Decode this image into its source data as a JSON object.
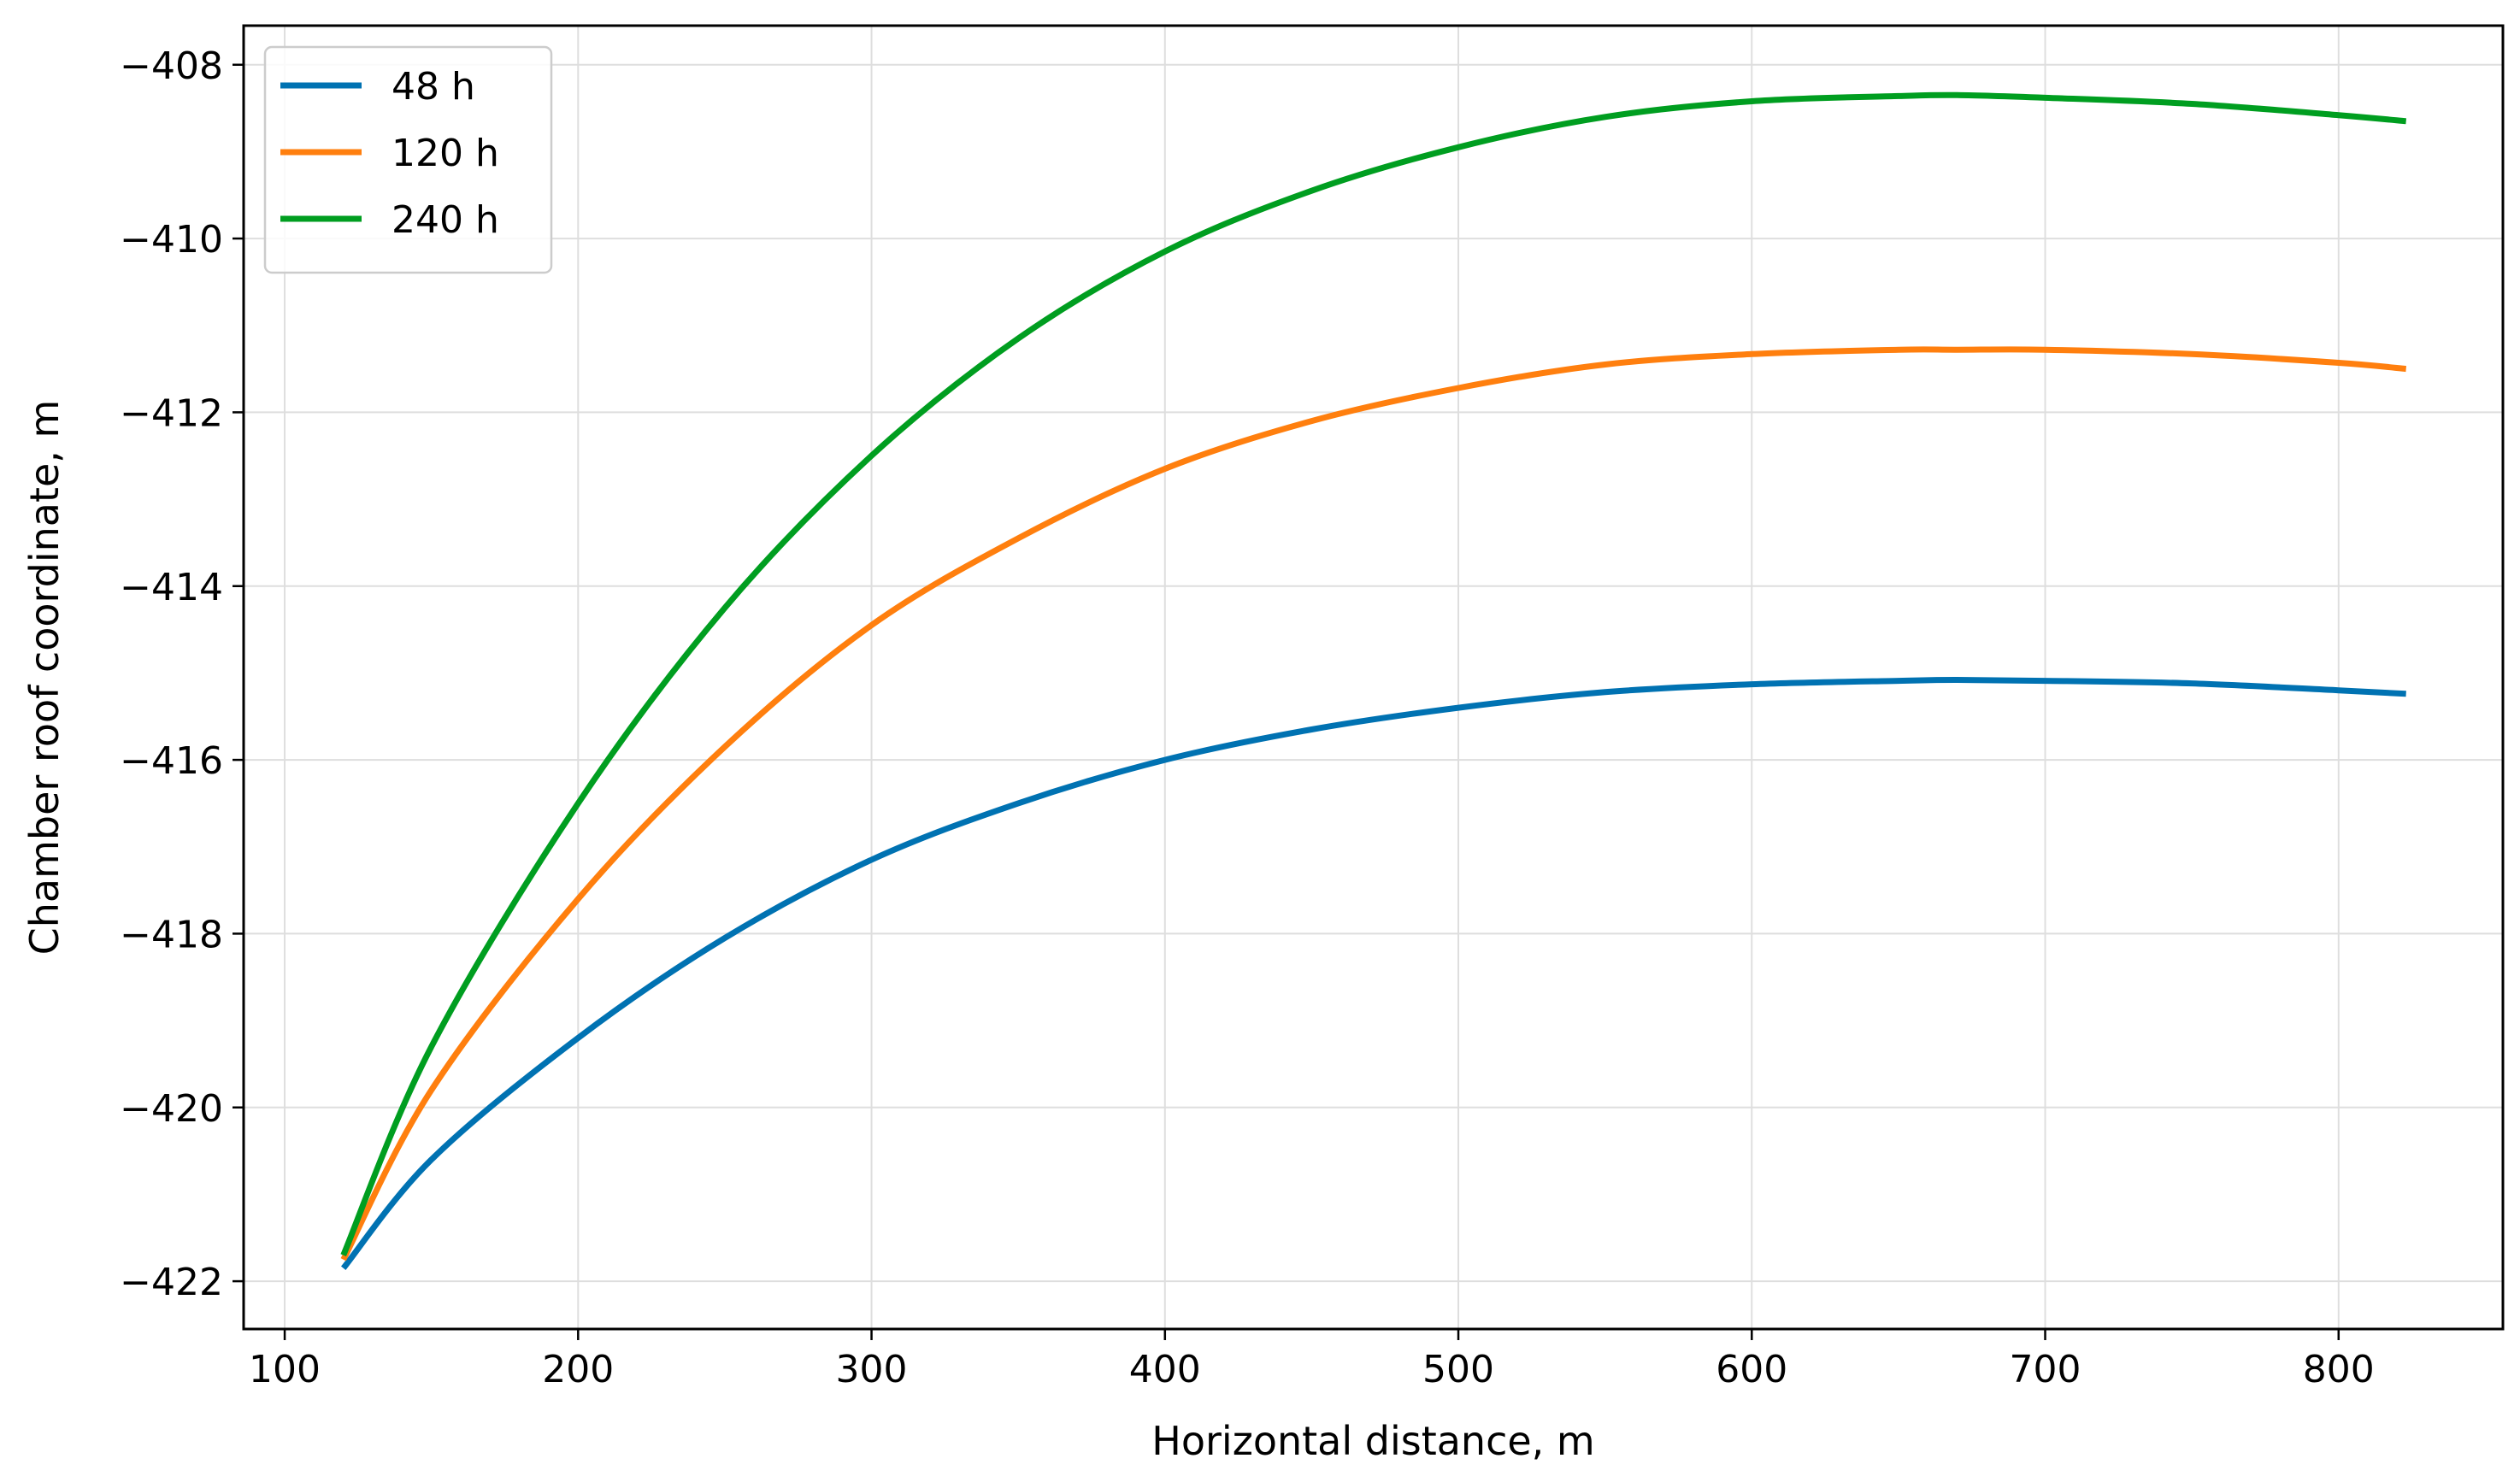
{
  "chart_data": {
    "type": "line",
    "title": "",
    "xlabel": "Horizontal distance, m",
    "ylabel": "Chamber roof coordinate, m",
    "xlim": [
      86,
      856
    ],
    "ylim": [
      -422.55,
      -407.55
    ],
    "xticks": [
      100,
      200,
      300,
      400,
      500,
      600,
      700,
      800
    ],
    "xtick_labels": [
      "100",
      "200",
      "300",
      "400",
      "500",
      "600",
      "700",
      "800"
    ],
    "yticks": [
      -422,
      -420,
      -418,
      -416,
      -414,
      -412,
      -410,
      -408
    ],
    "ytick_labels": [
      "−422",
      "−420",
      "−418",
      "−416",
      "−414",
      "−412",
      "−410",
      "−408"
    ],
    "grid": true,
    "legend_position": "top-left",
    "series": [
      {
        "name": "48 h",
        "color": "#0072b2",
        "x": [
          120,
          150,
          200,
          250,
          300,
          350,
          400,
          450,
          500,
          550,
          600,
          650,
          670,
          700,
          750,
          800,
          823
        ],
        "y": [
          -421.85,
          -420.6,
          -419.2,
          -418.05,
          -417.15,
          -416.5,
          -416.0,
          -415.65,
          -415.4,
          -415.22,
          -415.13,
          -415.09,
          -415.08,
          -415.09,
          -415.12,
          -415.2,
          -415.24
        ]
      },
      {
        "name": "120 h",
        "color": "#ff7f0e",
        "x": [
          120,
          150,
          200,
          250,
          300,
          350,
          400,
          450,
          500,
          550,
          600,
          650,
          670,
          700,
          750,
          800,
          823
        ],
        "y": [
          -421.75,
          -419.8,
          -417.6,
          -415.85,
          -414.45,
          -413.45,
          -412.65,
          -412.1,
          -411.72,
          -411.45,
          -411.33,
          -411.28,
          -411.28,
          -411.28,
          -411.33,
          -411.43,
          -411.5
        ]
      },
      {
        "name": "240 h",
        "color": "#009e20",
        "x": [
          120,
          150,
          200,
          250,
          300,
          350,
          400,
          450,
          500,
          550,
          600,
          650,
          670,
          700,
          750,
          800,
          823
        ],
        "y": [
          -421.7,
          -419.3,
          -416.5,
          -414.25,
          -412.5,
          -411.15,
          -410.15,
          -409.45,
          -408.95,
          -408.6,
          -408.42,
          -408.36,
          -408.35,
          -408.38,
          -408.45,
          -408.58,
          -408.65
        ]
      }
    ]
  }
}
